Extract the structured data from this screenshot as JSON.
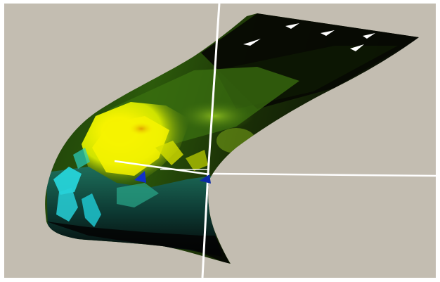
{
  "viewer": {
    "background_color": "#c3bdb1",
    "axis_color": "#ffffff",
    "colormap": [
      "#050505",
      "#0f1a05",
      "#2a4d08",
      "#4f7a14",
      "#8fbf1f",
      "#f6f300",
      "#e6b800",
      "#1a6f6f",
      "#27d9e0",
      "#1030c8"
    ]
  },
  "icons": {
    "surface": "3d-surface-mesh-icon",
    "axes": "3d-axes-icon",
    "markers": "point-marker-icon"
  }
}
